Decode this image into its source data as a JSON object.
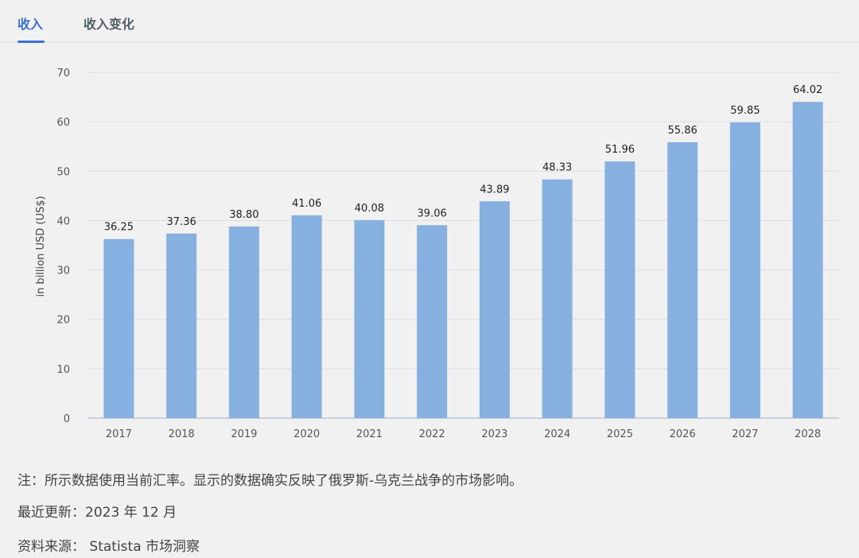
{
  "tabs": [
    {
      "label": "收入",
      "active": true
    },
    {
      "label": "收入变化",
      "active": false
    }
  ],
  "colors": {
    "bar": "#86b0df",
    "accent": "#3b6fd8",
    "grid": "#d8dde6"
  },
  "chart_data": {
    "type": "bar",
    "categories": [
      "2017",
      "2018",
      "2019",
      "2020",
      "2021",
      "2022",
      "2023",
      "2024",
      "2025",
      "2026",
      "2027",
      "2028"
    ],
    "values": [
      36.25,
      37.36,
      38.8,
      41.06,
      40.08,
      39.06,
      43.89,
      48.33,
      51.96,
      55.86,
      59.85,
      64.02
    ],
    "value_labels": [
      "36.25",
      "37.36",
      "38.80",
      "41.06",
      "40.08",
      "39.06",
      "43.89",
      "48.33",
      "51.96",
      "55.86",
      "59.85",
      "64.02"
    ],
    "ylabel": "in billion USD (US$)",
    "ylim": [
      0,
      70
    ],
    "yticks": [
      0,
      10,
      20,
      30,
      40,
      50,
      60,
      70
    ],
    "grid": true
  },
  "notes": {
    "note": "注：所示数据使用当前汇率。显示的数据确实反映了俄罗斯-乌克兰战争的市场影响。",
    "updated": "最近更新：2023 年 12 月",
    "source": "资料来源： Statista 市场洞察"
  }
}
